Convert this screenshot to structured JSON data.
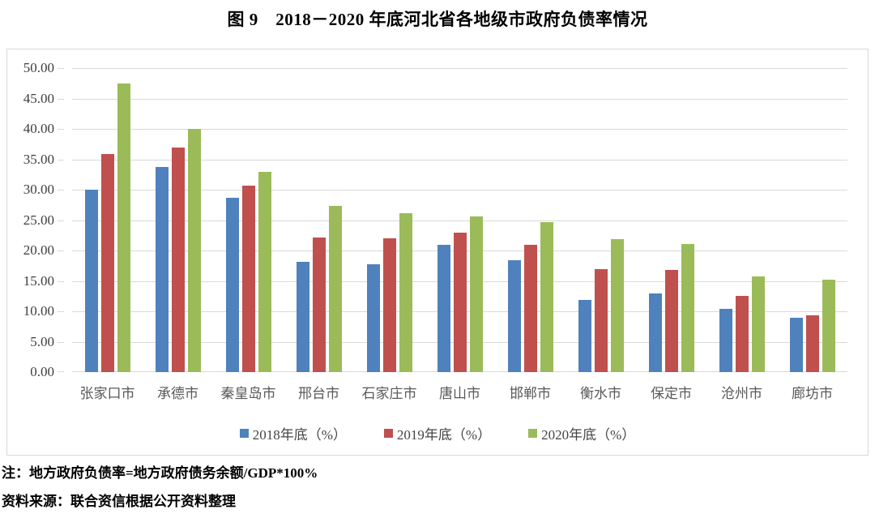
{
  "figure": {
    "title": "图 9　2018－2020 年底河北省各地级市政府负债率情况",
    "note": "注：地方政府负债率=地方政府债务余额/GDP*100%",
    "source": "资料来源：联合资信根据公开资料整理"
  },
  "chart_data": {
    "type": "bar",
    "title": "图 9　2018－2020 年底河北省各地级市政府负债率情况",
    "xlabel": "",
    "ylabel": "",
    "ylim": [
      0,
      50
    ],
    "ytick_step": 5,
    "ytick_labels": [
      "0.00",
      "5.00",
      "10.00",
      "15.00",
      "20.00",
      "25.00",
      "30.00",
      "35.00",
      "40.00",
      "45.00",
      "50.00"
    ],
    "grid": true,
    "legend_position": "bottom",
    "categories": [
      "张家口市",
      "承德市",
      "秦皇岛市",
      "邢台市",
      "石家庄市",
      "唐山市",
      "邯郸市",
      "衡水市",
      "保定市",
      "沧州市",
      "廊坊市"
    ],
    "series": [
      {
        "name": "2018年底（%）",
        "color": "#4F81BD",
        "values": [
          30.0,
          33.8,
          28.7,
          18.1,
          17.7,
          21.0,
          18.4,
          11.9,
          13.0,
          10.4,
          8.9
        ]
      },
      {
        "name": "2019年底（%）",
        "color": "#C0504D",
        "values": [
          35.9,
          36.9,
          30.7,
          22.2,
          22.0,
          23.0,
          21.0,
          16.9,
          16.8,
          12.6,
          9.4
        ]
      },
      {
        "name": "2020年底（%）",
        "color": "#9BBB59",
        "values": [
          47.5,
          40.0,
          33.0,
          27.4,
          26.2,
          25.6,
          24.7,
          21.9,
          21.1,
          15.7,
          15.2
        ]
      }
    ],
    "colors": {
      "gridline": "#d9d9d9",
      "frame_border": "#d9d9d9"
    }
  }
}
